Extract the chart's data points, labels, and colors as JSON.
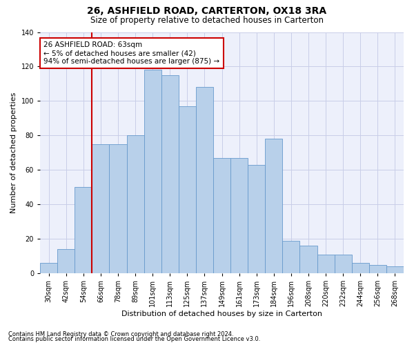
{
  "title": "26, ASHFIELD ROAD, CARTERTON, OX18 3RA",
  "subtitle": "Size of property relative to detached houses in Carterton",
  "xlabel": "Distribution of detached houses by size in Carterton",
  "ylabel": "Number of detached properties",
  "bar_labels": [
    "30sqm",
    "42sqm",
    "54sqm",
    "66sqm",
    "78sqm",
    "89sqm",
    "101sqm",
    "113sqm",
    "125sqm",
    "137sqm",
    "149sqm",
    "161sqm",
    "173sqm",
    "184sqm",
    "196sqm",
    "208sqm",
    "220sqm",
    "232sqm",
    "244sqm",
    "256sqm",
    "268sqm"
  ],
  "bar_heights": [
    6,
    14,
    50,
    75,
    75,
    80,
    118,
    115,
    97,
    108,
    67,
    67,
    63,
    78,
    19,
    16,
    11,
    11,
    6,
    5,
    4
  ],
  "bar_color": "#b8d0ea",
  "bar_edge_color": "#6699cc",
  "vline_pos": 2.5,
  "vline_color": "#cc0000",
  "ann_title": "26 ASHFIELD ROAD: 63sqm",
  "ann_line1": "← 5% of detached houses are smaller (42)",
  "ann_line2": "94% of semi-detached houses are larger (875) →",
  "ann_box_facecolor": "white",
  "ann_box_edgecolor": "#cc0000",
  "ylim": [
    0,
    140
  ],
  "yticks": [
    0,
    20,
    40,
    60,
    80,
    100,
    120,
    140
  ],
  "bg_color": "#edf0fb",
  "grid_color": "#c8cde8",
  "title_fontsize": 10,
  "subtitle_fontsize": 8.5,
  "ylabel_fontsize": 8,
  "xlabel_fontsize": 8,
  "tick_fontsize": 7,
  "footnote1": "Contains HM Land Registry data © Crown copyright and database right 2024.",
  "footnote2": "Contains public sector information licensed under the Open Government Licence v3.0.",
  "footnote_fontsize": 6
}
